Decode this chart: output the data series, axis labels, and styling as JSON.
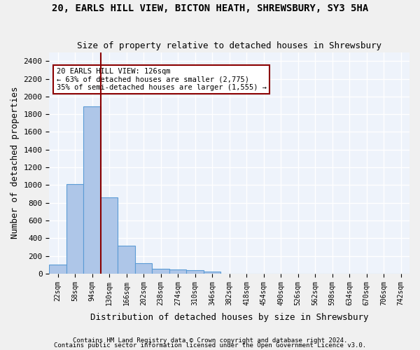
{
  "title1": "20, EARLS HILL VIEW, BICTON HEATH, SHREWSBURY, SY3 5HA",
  "title2": "Size of property relative to detached houses in Shrewsbury",
  "xlabel": "Distribution of detached houses by size in Shrewsbury",
  "ylabel": "Number of detached properties",
  "footer1": "Contains HM Land Registry data © Crown copyright and database right 2024.",
  "footer2": "Contains public sector information licensed under the Open Government Licence v3.0.",
  "bin_labels": [
    "22sqm",
    "58sqm",
    "94sqm",
    "130sqm",
    "166sqm",
    "202sqm",
    "238sqm",
    "274sqm",
    "310sqm",
    "346sqm",
    "382sqm",
    "418sqm",
    "454sqm",
    "490sqm",
    "526sqm",
    "562sqm",
    "598sqm",
    "634sqm",
    "670sqm",
    "706sqm",
    "742sqm"
  ],
  "bar_values": [
    100,
    1010,
    1890,
    860,
    315,
    115,
    58,
    48,
    35,
    22,
    0,
    0,
    0,
    0,
    0,
    0,
    0,
    0,
    0,
    0,
    0
  ],
  "bar_color": "#aec6e8",
  "bar_edge_color": "#5b9bd5",
  "background_color": "#eef3fb",
  "grid_color": "#ffffff",
  "annotation_line1": "20 EARLS HILL VIEW: 126sqm",
  "annotation_line2": "← 63% of detached houses are smaller (2,775)",
  "annotation_line3": "35% of semi-detached houses are larger (1,555) →",
  "vline_color": "#8b0000",
  "annotation_box_color": "#8b0000",
  "ylim": [
    0,
    2500
  ],
  "yticks": [
    0,
    200,
    400,
    600,
    800,
    1000,
    1200,
    1400,
    1600,
    1800,
    2000,
    2200,
    2400
  ],
  "fig_bg": "#f0f0f0"
}
